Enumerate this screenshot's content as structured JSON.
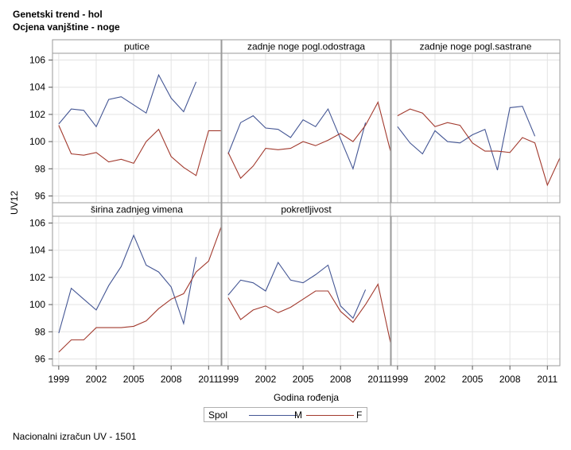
{
  "header": {
    "title_line1": "Genetski trend - hol",
    "title_line2": "Ocjena vanjštine - noge"
  },
  "footnote": "Nacionalni izračun UV - 1501",
  "legend": {
    "title": "Spol",
    "items": [
      {
        "label": "M",
        "color": "#445694"
      },
      {
        "label": "F",
        "color": "#a23a2e"
      }
    ]
  },
  "chart_data": {
    "type": "line",
    "ylabel": "UV12",
    "xlabel": "Godina rođenja",
    "xlim": [
      1998.5,
      2012
    ],
    "ylim": [
      95.5,
      106.5
    ],
    "x_ticks": [
      1999,
      2002,
      2005,
      2008,
      2011
    ],
    "y_ticks": [
      96,
      98,
      100,
      102,
      104,
      106
    ],
    "grid": true,
    "legend_position": "bottom",
    "x": [
      1999,
      2000,
      2001,
      2002,
      2003,
      2004,
      2005,
      2006,
      2007,
      2008,
      2009,
      2010,
      2011,
      2012
    ],
    "panels": [
      {
        "title": "putice",
        "series": [
          {
            "name": "M",
            "color": "#445694",
            "values": [
              101.3,
              102.4,
              102.3,
              101.1,
              103.1,
              103.3,
              102.7,
              102.1,
              104.9,
              103.2,
              102.2,
              104.4,
              null,
              null
            ]
          },
          {
            "name": "F",
            "color": "#a23a2e",
            "values": [
              101.2,
              99.1,
              99.0,
              99.2,
              98.5,
              98.7,
              98.4,
              100.0,
              100.9,
              98.9,
              98.1,
              97.5,
              100.8,
              100.8
            ]
          }
        ]
      },
      {
        "title": "zadnje noge pogl.odostraga",
        "series": [
          {
            "name": "M",
            "color": "#445694",
            "values": [
              99.1,
              101.4,
              101.9,
              101.0,
              100.9,
              100.3,
              101.6,
              101.1,
              102.4,
              100.2,
              98.0,
              101.4,
              null,
              null
            ]
          },
          {
            "name": "F",
            "color": "#a23a2e",
            "values": [
              99.2,
              97.3,
              98.2,
              99.5,
              99.4,
              99.5,
              100.0,
              99.7,
              100.1,
              100.6,
              100.0,
              101.2,
              102.9,
              99.3
            ]
          }
        ]
      },
      {
        "title": "zadnje noge pogl.sastrane",
        "series": [
          {
            "name": "M",
            "color": "#445694",
            "values": [
              101.1,
              99.9,
              99.1,
              100.8,
              100.0,
              99.9,
              100.5,
              100.9,
              97.9,
              102.5,
              102.6,
              100.4,
              null,
              null
            ]
          },
          {
            "name": "F",
            "color": "#a23a2e",
            "values": [
              101.9,
              102.4,
              102.1,
              101.1,
              101.4,
              101.2,
              99.9,
              99.3,
              99.3,
              99.2,
              100.3,
              99.9,
              96.8,
              98.8
            ]
          }
        ]
      },
      {
        "title": "širina zadnjeg vimena",
        "series": [
          {
            "name": "M",
            "color": "#445694",
            "values": [
              97.9,
              101.2,
              100.4,
              99.6,
              101.4,
              102.8,
              105.1,
              102.9,
              102.4,
              101.3,
              98.6,
              103.5,
              null,
              null
            ]
          },
          {
            "name": "F",
            "color": "#a23a2e",
            "values": [
              96.5,
              97.4,
              97.4,
              98.3,
              98.3,
              98.3,
              98.4,
              98.8,
              99.7,
              100.4,
              100.8,
              102.4,
              103.2,
              105.7
            ]
          }
        ]
      },
      {
        "title": "pokretljivost",
        "series": [
          {
            "name": "M",
            "color": "#445694",
            "values": [
              100.7,
              101.8,
              101.6,
              101.0,
              103.1,
              101.8,
              101.6,
              102.2,
              102.9,
              99.9,
              99.0,
              101.1,
              null,
              null
            ]
          },
          {
            "name": "F",
            "color": "#a23a2e",
            "values": [
              100.5,
              98.9,
              99.6,
              99.9,
              99.4,
              99.8,
              100.4,
              101.0,
              101.0,
              99.5,
              98.7,
              100.0,
              101.5,
              97.2
            ]
          }
        ]
      }
    ]
  }
}
